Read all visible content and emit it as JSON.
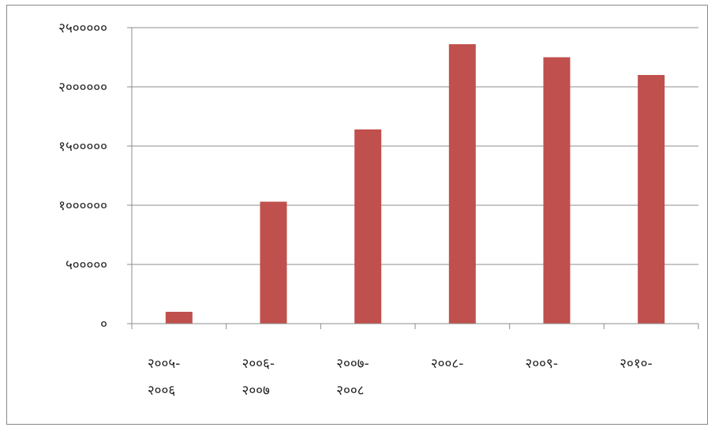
{
  "chart_data": {
    "type": "bar",
    "title": "",
    "xlabel": "",
    "ylabel": "",
    "ylim": [
      0,
      2500000
    ],
    "yticks": [
      0,
      500000,
      1000000,
      1500000,
      2000000,
      2500000
    ],
    "ytick_labels": [
      "०",
      "५०००००",
      "१००००००",
      "१५०००००",
      "२००००००",
      "२५०००००"
    ],
    "categories": [
      [
        "२००५-",
        "२००६"
      ],
      [
        "२००६-",
        "२००७"
      ],
      [
        "२००७-",
        "२००८"
      ],
      [
        "२००८-"
      ],
      [
        "२००९-"
      ],
      [
        "२०१०-"
      ]
    ],
    "values": [
      100000,
      1030000,
      1640000,
      2360000,
      2250000,
      2100000
    ],
    "bar_color": "#C0504D",
    "grid": true,
    "legend": "none"
  }
}
